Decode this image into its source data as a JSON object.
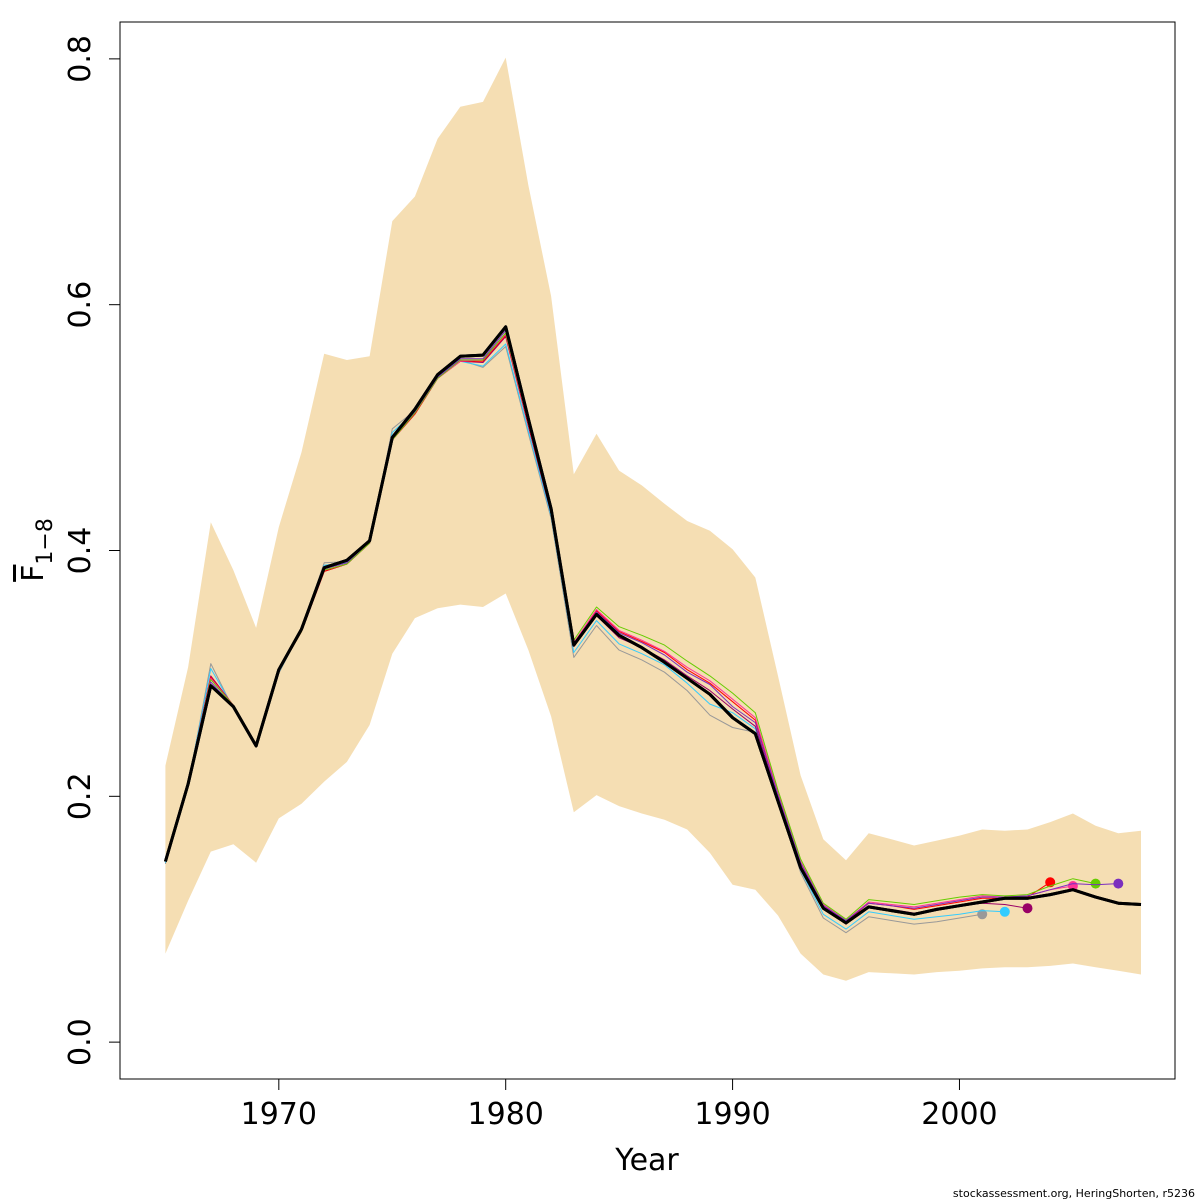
{
  "chart_data": {
    "type": "line",
    "xlabel": "Year",
    "ylabel": {
      "base": "F",
      "subscript": "1−8"
    },
    "xlim": [
      1963,
      2009.5
    ],
    "ylim": [
      -0.03,
      0.83
    ],
    "x_ticks": [
      1970,
      1980,
      1990,
      2000
    ],
    "x_tick_labels": [
      "1970",
      "1980",
      "1990",
      "2000"
    ],
    "y_ticks": [
      0.0,
      0.2,
      0.4,
      0.6,
      0.8
    ],
    "y_tick_labels": [
      "0.0",
      "0.2",
      "0.4",
      "0.6",
      "0.8"
    ],
    "grid": false,
    "legend": null,
    "credit": "stockassessment.org, HeringShorten, r5236",
    "band": {
      "color": "#f5deb3",
      "x": [
        1965,
        1966,
        1967,
        1968,
        1969,
        1970,
        1971,
        1972,
        1973,
        1974,
        1975,
        1976,
        1977,
        1978,
        1979,
        1980,
        1981,
        1982,
        1983,
        1984,
        1985,
        1986,
        1987,
        1988,
        1989,
        1990,
        1991,
        1992,
        1993,
        1994,
        1995,
        1996,
        1997,
        1998,
        1999,
        2000,
        2001,
        2002,
        2003,
        2004,
        2005,
        2006,
        2007,
        2008
      ],
      "lower": [
        0.072,
        0.115,
        0.155,
        0.161,
        0.146,
        0.182,
        0.194,
        0.212,
        0.228,
        0.258,
        0.316,
        0.345,
        0.353,
        0.356,
        0.354,
        0.365,
        0.319,
        0.265,
        0.187,
        0.201,
        0.192,
        0.186,
        0.181,
        0.173,
        0.154,
        0.128,
        0.124,
        0.103,
        0.072,
        0.055,
        0.05,
        0.057,
        0.056,
        0.055,
        0.057,
        0.058,
        0.06,
        0.061,
        0.061,
        0.062,
        0.064,
        0.061,
        0.058,
        0.055
      ],
      "upper": [
        0.225,
        0.305,
        0.423,
        0.384,
        0.337,
        0.419,
        0.48,
        0.56,
        0.555,
        0.558,
        0.668,
        0.688,
        0.735,
        0.761,
        0.765,
        0.801,
        0.697,
        0.607,
        0.462,
        0.495,
        0.465,
        0.453,
        0.438,
        0.424,
        0.416,
        0.401,
        0.378,
        0.298,
        0.217,
        0.165,
        0.148,
        0.17,
        0.165,
        0.16,
        0.164,
        0.168,
        0.173,
        0.172,
        0.173,
        0.179,
        0.186,
        0.176,
        0.17,
        0.172
      ]
    },
    "series": [
      {
        "color": "#000000",
        "width": 3,
        "x": [
          1965,
          1966,
          1967,
          1968,
          1969,
          1970,
          1971,
          1972,
          1973,
          1974,
          1975,
          1976,
          1977,
          1978,
          1979,
          1980,
          1981,
          1982,
          1983,
          1984,
          1985,
          1986,
          1987,
          1988,
          1989,
          1990,
          1991,
          1992,
          1993,
          1994,
          1995,
          1996,
          1997,
          1998,
          1999,
          2000,
          2001,
          2002,
          2003,
          2004,
          2005,
          2006,
          2007,
          2008
        ],
        "y": [
          0.147,
          0.21,
          0.29,
          0.273,
          0.241,
          0.303,
          0.336,
          0.386,
          0.392,
          0.408,
          0.492,
          0.515,
          0.543,
          0.558,
          0.559,
          0.582,
          0.507,
          0.434,
          0.323,
          0.348,
          0.331,
          0.321,
          0.309,
          0.296,
          0.283,
          0.264,
          0.251,
          0.196,
          0.142,
          0.109,
          0.097,
          0.11,
          0.107,
          0.104,
          0.108,
          0.111,
          0.114,
          0.117,
          0.117,
          0.12,
          0.124,
          0.118,
          0.113,
          0.112
        ]
      },
      {
        "color": "#7b2fbe",
        "width": 1,
        "x": [
          1965,
          1966,
          1967,
          1968,
          1969,
          1970,
          1971,
          1972,
          1973,
          1974,
          1975,
          1976,
          1977,
          1978,
          1979,
          1980,
          1981,
          1982,
          1983,
          1984,
          1985,
          1986,
          1987,
          1988,
          1989,
          1990,
          1991,
          1992,
          1993,
          1994,
          1995,
          1996,
          1997,
          1998,
          1999,
          2000,
          2001,
          2002,
          2003,
          2004,
          2005,
          2006,
          2007
        ],
        "y": [
          0.148,
          0.211,
          0.293,
          0.273,
          0.242,
          0.303,
          0.335,
          0.385,
          0.39,
          0.407,
          0.491,
          0.513,
          0.541,
          0.556,
          0.556,
          0.579,
          0.505,
          0.433,
          0.324,
          0.35,
          0.333,
          0.325,
          0.315,
          0.301,
          0.291,
          0.273,
          0.26,
          0.201,
          0.146,
          0.111,
          0.099,
          0.113,
          0.111,
          0.109,
          0.112,
          0.115,
          0.118,
          0.118,
          0.119,
          0.124,
          0.129,
          0.128,
          0.129
        ]
      },
      {
        "color": "#66cc00",
        "width": 1,
        "x": [
          1965,
          1966,
          1967,
          1968,
          1969,
          1970,
          1971,
          1972,
          1973,
          1974,
          1975,
          1976,
          1977,
          1978,
          1979,
          1980,
          1981,
          1982,
          1983,
          1984,
          1985,
          1986,
          1987,
          1988,
          1989,
          1990,
          1991,
          1992,
          1993,
          1994,
          1995,
          1996,
          1997,
          1998,
          1999,
          2000,
          2001,
          2002,
          2003,
          2004,
          2005,
          2006
        ],
        "y": [
          0.149,
          0.212,
          0.295,
          0.274,
          0.242,
          0.302,
          0.334,
          0.384,
          0.389,
          0.406,
          0.49,
          0.512,
          0.54,
          0.555,
          0.555,
          0.577,
          0.504,
          0.433,
          0.327,
          0.354,
          0.338,
          0.331,
          0.323,
          0.31,
          0.298,
          0.284,
          0.268,
          0.205,
          0.149,
          0.113,
          0.1,
          0.116,
          0.114,
          0.112,
          0.115,
          0.118,
          0.12,
          0.119,
          0.12,
          0.127,
          0.133,
          0.129
        ]
      },
      {
        "color": "#ff3399",
        "width": 1,
        "x": [
          1965,
          1966,
          1967,
          1968,
          1969,
          1970,
          1971,
          1972,
          1973,
          1974,
          1975,
          1976,
          1977,
          1978,
          1979,
          1980,
          1981,
          1982,
          1983,
          1984,
          1985,
          1986,
          1987,
          1988,
          1989,
          1990,
          1991,
          1992,
          1993,
          1994,
          1995,
          1996,
          1997,
          1998,
          1999,
          2000,
          2001,
          2002,
          2003,
          2004,
          2005
        ],
        "y": [
          0.148,
          0.211,
          0.296,
          0.274,
          0.242,
          0.302,
          0.334,
          0.384,
          0.389,
          0.406,
          0.49,
          0.512,
          0.54,
          0.554,
          0.555,
          0.576,
          0.503,
          0.432,
          0.325,
          0.352,
          0.335,
          0.327,
          0.318,
          0.305,
          0.294,
          0.279,
          0.264,
          0.203,
          0.147,
          0.112,
          0.099,
          0.114,
          0.112,
          0.11,
          0.113,
          0.116,
          0.119,
          0.118,
          0.119,
          0.124,
          0.127
        ]
      },
      {
        "color": "#ff0000",
        "width": 1,
        "x": [
          1965,
          1966,
          1967,
          1968,
          1969,
          1970,
          1971,
          1972,
          1973,
          1974,
          1975,
          1976,
          1977,
          1978,
          1979,
          1980,
          1981,
          1982,
          1983,
          1984,
          1985,
          1986,
          1987,
          1988,
          1989,
          1990,
          1991,
          1992,
          1993,
          1994,
          1995,
          1996,
          1997,
          1998,
          1999,
          2000,
          2001,
          2002,
          2003,
          2004
        ],
        "y": [
          0.148,
          0.211,
          0.297,
          0.274,
          0.242,
          0.302,
          0.334,
          0.383,
          0.389,
          0.406,
          0.49,
          0.511,
          0.54,
          0.554,
          0.554,
          0.575,
          0.502,
          0.431,
          0.325,
          0.351,
          0.334,
          0.326,
          0.317,
          0.303,
          0.292,
          0.277,
          0.262,
          0.202,
          0.146,
          0.111,
          0.098,
          0.113,
          0.111,
          0.108,
          0.111,
          0.114,
          0.117,
          0.117,
          0.118,
          0.13
        ]
      },
      {
        "color": "#990066",
        "width": 1,
        "x": [
          1965,
          1966,
          1967,
          1968,
          1969,
          1970,
          1971,
          1972,
          1973,
          1974,
          1975,
          1976,
          1977,
          1978,
          1979,
          1980,
          1981,
          1982,
          1983,
          1984,
          1985,
          1986,
          1987,
          1988,
          1989,
          1990,
          1991,
          1992,
          1993,
          1994,
          1995,
          1996,
          1997,
          1998,
          1999,
          2000,
          2001,
          2002,
          2003
        ],
        "y": [
          0.148,
          0.211,
          0.298,
          0.274,
          0.242,
          0.302,
          0.334,
          0.383,
          0.389,
          0.406,
          0.49,
          0.511,
          0.54,
          0.554,
          0.553,
          0.574,
          0.501,
          0.43,
          0.322,
          0.347,
          0.329,
          0.321,
          0.311,
          0.298,
          0.286,
          0.271,
          0.257,
          0.199,
          0.143,
          0.109,
          0.096,
          0.11,
          0.108,
          0.105,
          0.108,
          0.111,
          0.113,
          0.112,
          0.109
        ]
      },
      {
        "color": "#33ccff",
        "width": 1,
        "x": [
          1965,
          1966,
          1967,
          1968,
          1969,
          1970,
          1971,
          1972,
          1973,
          1974,
          1975,
          1976,
          1977,
          1978,
          1979,
          1980,
          1981,
          1982,
          1983,
          1984,
          1985,
          1986,
          1987,
          1988,
          1989,
          1990,
          1991,
          1992,
          1993,
          1994,
          1995,
          1996,
          1997,
          1998,
          1999,
          2000,
          2001,
          2002
        ],
        "y": [
          0.146,
          0.21,
          0.304,
          0.272,
          0.241,
          0.301,
          0.335,
          0.388,
          0.39,
          0.406,
          0.496,
          0.513,
          0.541,
          0.554,
          0.55,
          0.568,
          0.497,
          0.428,
          0.317,
          0.343,
          0.324,
          0.316,
          0.307,
          0.292,
          0.275,
          0.268,
          0.255,
          0.198,
          0.14,
          0.104,
          0.092,
          0.106,
          0.103,
          0.1,
          0.102,
          0.104,
          0.107,
          0.106
        ]
      },
      {
        "color": "#999999",
        "width": 1,
        "x": [
          1965,
          1966,
          1967,
          1968,
          1969,
          1970,
          1971,
          1972,
          1973,
          1974,
          1975,
          1976,
          1977,
          1978,
          1979,
          1980,
          1981,
          1982,
          1983,
          1984,
          1985,
          1986,
          1987,
          1988,
          1989,
          1990,
          1991,
          1992,
          1993,
          1994,
          1995,
          1996,
          1997,
          1998,
          1999,
          2000,
          2001
        ],
        "y": [
          0.145,
          0.209,
          0.308,
          0.271,
          0.24,
          0.3,
          0.336,
          0.39,
          0.391,
          0.406,
          0.499,
          0.514,
          0.542,
          0.555,
          0.549,
          0.566,
          0.495,
          0.426,
          0.313,
          0.339,
          0.319,
          0.311,
          0.301,
          0.286,
          0.266,
          0.256,
          0.252,
          0.196,
          0.138,
          0.101,
          0.089,
          0.102,
          0.099,
          0.096,
          0.098,
          0.101,
          0.104
        ]
      }
    ]
  }
}
